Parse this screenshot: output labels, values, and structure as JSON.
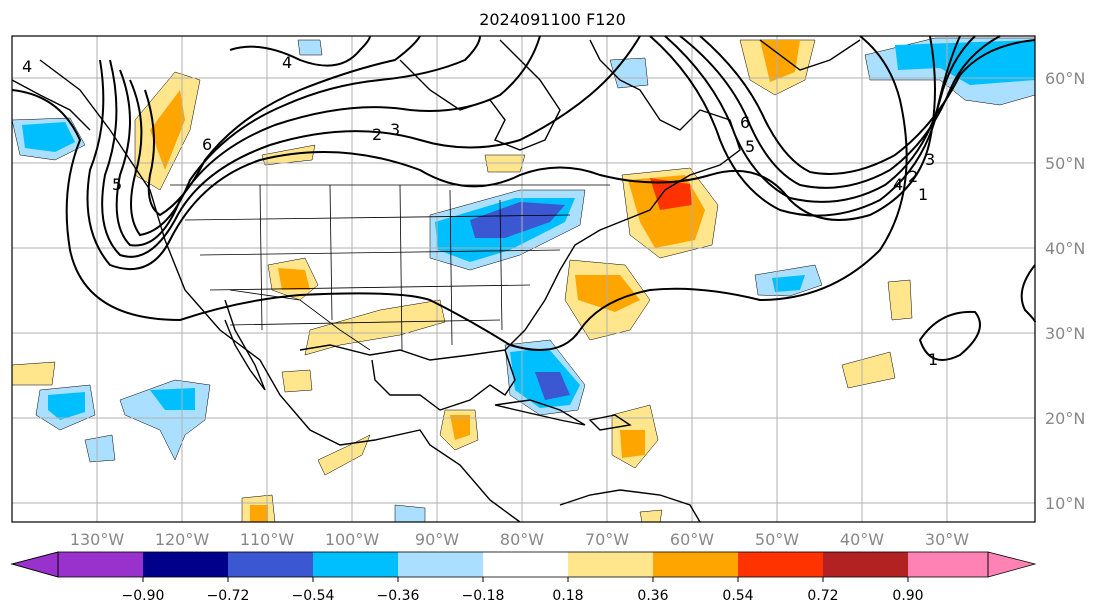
{
  "title": "2024091100 F120",
  "map": {
    "lon_labels": [
      "130°W",
      "120°W",
      "110°W",
      "100°W",
      "90°W",
      "80°W",
      "70°W",
      "60°W",
      "50°W",
      "40°W",
      "30°W"
    ],
    "lat_labels": [
      "60°N",
      "50°N",
      "40°N",
      "30°N",
      "20°N",
      "10°N"
    ],
    "contour_labels": [
      "4",
      "6",
      "5",
      "4",
      "2",
      "3",
      "6",
      "5",
      "4",
      "3",
      "2",
      "1",
      "1"
    ]
  },
  "colorbar": {
    "ticks": [
      "−0.90",
      "−0.72",
      "−0.54",
      "−0.36",
      "−0.18",
      "0.18",
      "0.36",
      "0.54",
      "0.72",
      "0.90"
    ],
    "colors": [
      "#9932cc",
      "#00008b",
      "#3b57d2",
      "#00bfff",
      "#aadfff",
      "#ffffff",
      "#ffe68c",
      "#ffa500",
      "#ff3300",
      "#b22222",
      "#ff82b4"
    ]
  }
}
